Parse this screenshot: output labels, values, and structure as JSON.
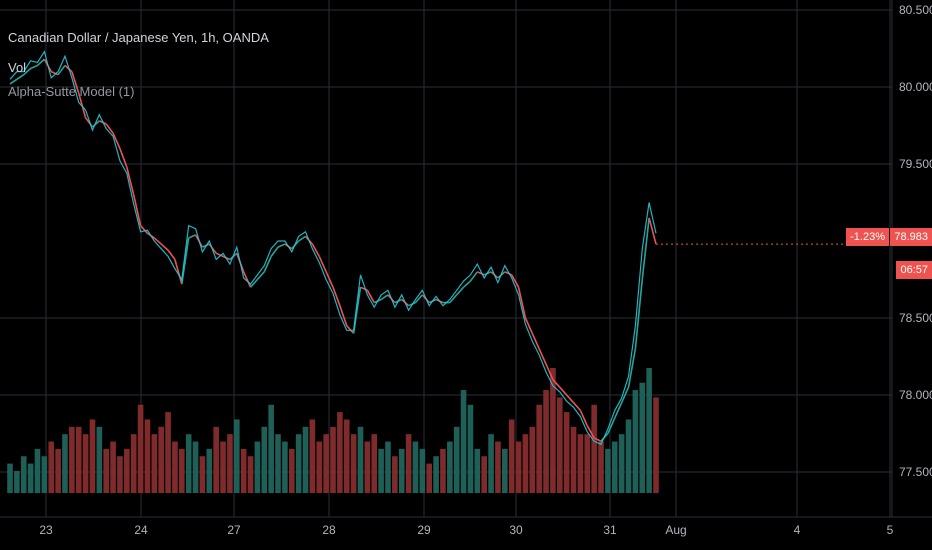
{
  "legend": {
    "title": "Canadian Dollar / Japanese Yen, 1h, OANDA",
    "vol": "Vol",
    "indicator": "Alpha-Sutte Model (1)"
  },
  "price_axis": {
    "current_price": "78.983",
    "change_percent": "-1.23%",
    "countdown": "06:57"
  },
  "colors": {
    "background": "#000000",
    "grid": "#2a2e39",
    "axis_text": "#b2b5be",
    "down": "#ef5350",
    "up": "#26a69a",
    "vol_down": "#7f2b2b",
    "vol_up": "#1e5f57",
    "indicator": "#26c6da"
  },
  "chart_data": {
    "type": "line",
    "title": "Canadian Dollar / Japanese Yen, 1h, OANDA",
    "x_ticks": [
      "23",
      "24",
      "27",
      "28",
      "29",
      "30",
      "31",
      "Aug",
      "4",
      "5"
    ],
    "y_ticks": [
      "80.500",
      "80.000",
      "79.500",
      "78.500",
      "78.000",
      "77.500"
    ],
    "ylim": [
      77.35,
      80.6
    ],
    "grid": true,
    "series": [
      {
        "name": "Canadian Dollar / Japanese Yen",
        "values": [
          80.02,
          80.05,
          80.08,
          80.12,
          80.14,
          80.18,
          80.1,
          80.08,
          80.14,
          80.1,
          79.96,
          79.8,
          79.74,
          79.78,
          79.76,
          79.7,
          79.6,
          79.48,
          79.3,
          79.1,
          79.05,
          79.02,
          78.98,
          78.94,
          78.88,
          78.72,
          79.02,
          79.04,
          78.96,
          78.98,
          78.92,
          78.9,
          78.88,
          78.92,
          78.8,
          78.7,
          78.75,
          78.8,
          78.9,
          78.96,
          78.98,
          78.95,
          79.0,
          79.03,
          78.98,
          78.9,
          78.8,
          78.7,
          78.58,
          78.45,
          78.4,
          78.7,
          78.68,
          78.6,
          78.62,
          78.65,
          78.6,
          78.62,
          78.58,
          78.6,
          78.65,
          78.6,
          78.62,
          78.6,
          78.6,
          78.65,
          78.7,
          78.74,
          78.8,
          78.78,
          78.8,
          78.76,
          78.8,
          78.78,
          78.7,
          78.5,
          78.4,
          78.3,
          78.2,
          78.1,
          78.05,
          78.0,
          77.95,
          77.9,
          77.8,
          77.72,
          77.7,
          77.75,
          77.85,
          77.95,
          78.05,
          78.3,
          78.75,
          79.15,
          78.98
        ]
      },
      {
        "name": "Alpha-Sutte Model (1)",
        "values": [
          80.05,
          80.1,
          80.1,
          80.17,
          80.16,
          80.23,
          80.06,
          80.1,
          80.2,
          80.06,
          79.9,
          79.85,
          79.72,
          79.82,
          79.73,
          79.68,
          79.52,
          79.44,
          79.24,
          79.06,
          79.07,
          79.0,
          78.95,
          78.9,
          78.82,
          78.75,
          79.1,
          79.08,
          78.93,
          79.0,
          78.88,
          78.92,
          78.85,
          78.96,
          78.76,
          78.72,
          78.78,
          78.84,
          78.95,
          79.0,
          79.0,
          78.93,
          79.03,
          79.06,
          78.95,
          78.86,
          78.75,
          78.66,
          78.52,
          78.42,
          78.42,
          78.78,
          78.65,
          78.57,
          78.65,
          78.68,
          78.57,
          78.65,
          78.55,
          78.62,
          78.68,
          78.58,
          78.64,
          78.58,
          78.62,
          78.68,
          78.74,
          78.78,
          78.85,
          78.76,
          78.83,
          78.73,
          78.84,
          78.76,
          78.65,
          78.46,
          78.35,
          78.26,
          78.15,
          78.06,
          78.02,
          77.96,
          77.92,
          77.86,
          77.76,
          77.7,
          77.68,
          77.78,
          77.9,
          77.98,
          78.12,
          78.45,
          78.95,
          79.25,
          79.05
        ]
      }
    ],
    "volume": [
      4,
      3,
      5,
      4,
      6,
      5,
      7,
      6,
      8,
      9,
      9,
      8,
      10,
      9,
      6,
      7,
      5,
      6,
      8,
      12,
      10,
      8,
      9,
      11,
      7,
      6,
      8,
      7,
      5,
      6,
      9,
      7,
      8,
      10,
      6,
      5,
      7,
      9,
      12,
      8,
      7,
      6,
      8,
      9,
      10,
      7,
      8,
      9,
      11,
      10,
      8,
      9,
      7,
      8,
      6,
      7,
      5,
      6,
      8,
      7,
      6,
      4,
      5,
      6,
      7,
      9,
      14,
      12,
      6,
      5,
      8,
      7,
      6,
      10,
      7,
      8,
      9,
      12,
      14,
      17,
      13,
      11,
      9,
      8,
      8,
      12,
      7,
      6,
      7,
      8,
      10,
      14,
      15,
      17,
      13
    ]
  }
}
